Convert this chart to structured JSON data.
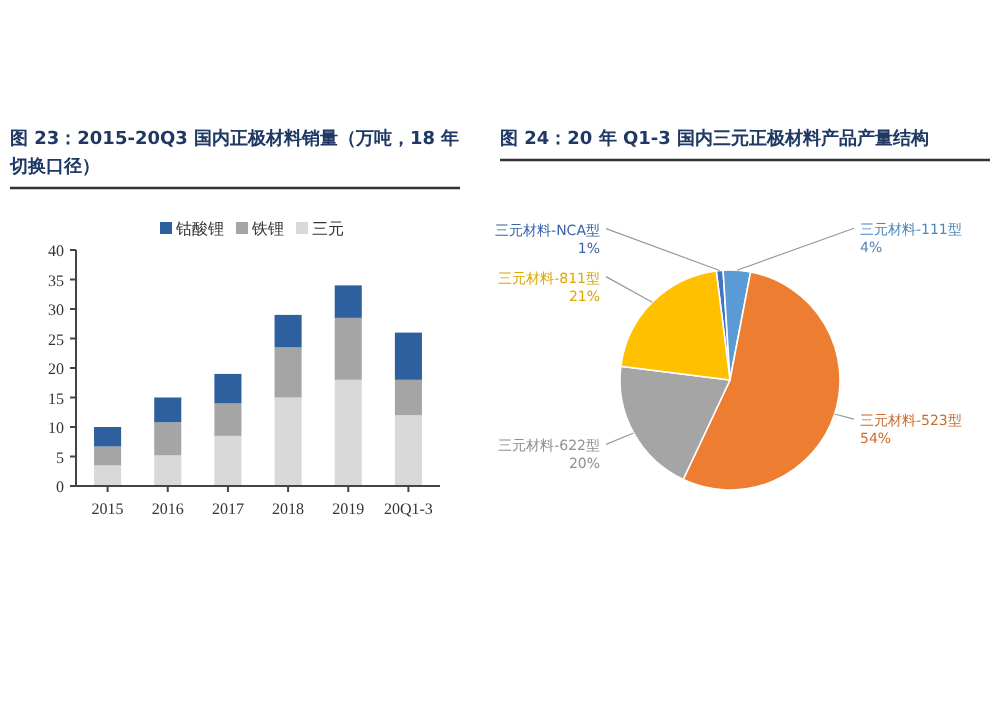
{
  "chart_data": [
    {
      "type": "bar",
      "title": "图 23：2015-20Q3 国内正极材料销量（万吨，18 年切换口径）",
      "categories": [
        "2015",
        "2016",
        "2017",
        "2018",
        "2019",
        "20Q1-3"
      ],
      "stacked": true,
      "legend": "top",
      "series": [
        {
          "name": "三元",
          "color": "#d9d9d9",
          "values": [
            3.5,
            5.2,
            8.5,
            15,
            18,
            12
          ]
        },
        {
          "name": "铁锂",
          "color": "#a5a5a5",
          "values": [
            3.2,
            5.6,
            5.5,
            8.5,
            10.5,
            6
          ]
        },
        {
          "name": "钴酸锂",
          "color": "#2e5f9e",
          "values": [
            3.3,
            4.2,
            5,
            5.5,
            5.5,
            8
          ]
        }
      ],
      "ylim": [
        0,
        40
      ],
      "yticks": [
        0,
        5,
        10,
        15,
        20,
        25,
        30,
        35,
        40
      ]
    },
    {
      "type": "pie",
      "title": "图 24：20 年 Q1-3 国内三元正极材料产品产量结构",
      "categories": [
        "三元材料-NCA型",
        "三元材料-111型",
        "三元材料-523型",
        "三元材料-622型",
        "三元材料-811型"
      ],
      "values": [
        1,
        4,
        54,
        20,
        21
      ],
      "colors": [
        "#4472c4",
        "#5b9bd5",
        "#ed7d31",
        "#a5a5a5",
        "#ffc000"
      ],
      "value_labels": [
        "1%",
        "4%",
        "54%",
        "20%",
        "21%"
      ]
    }
  ]
}
